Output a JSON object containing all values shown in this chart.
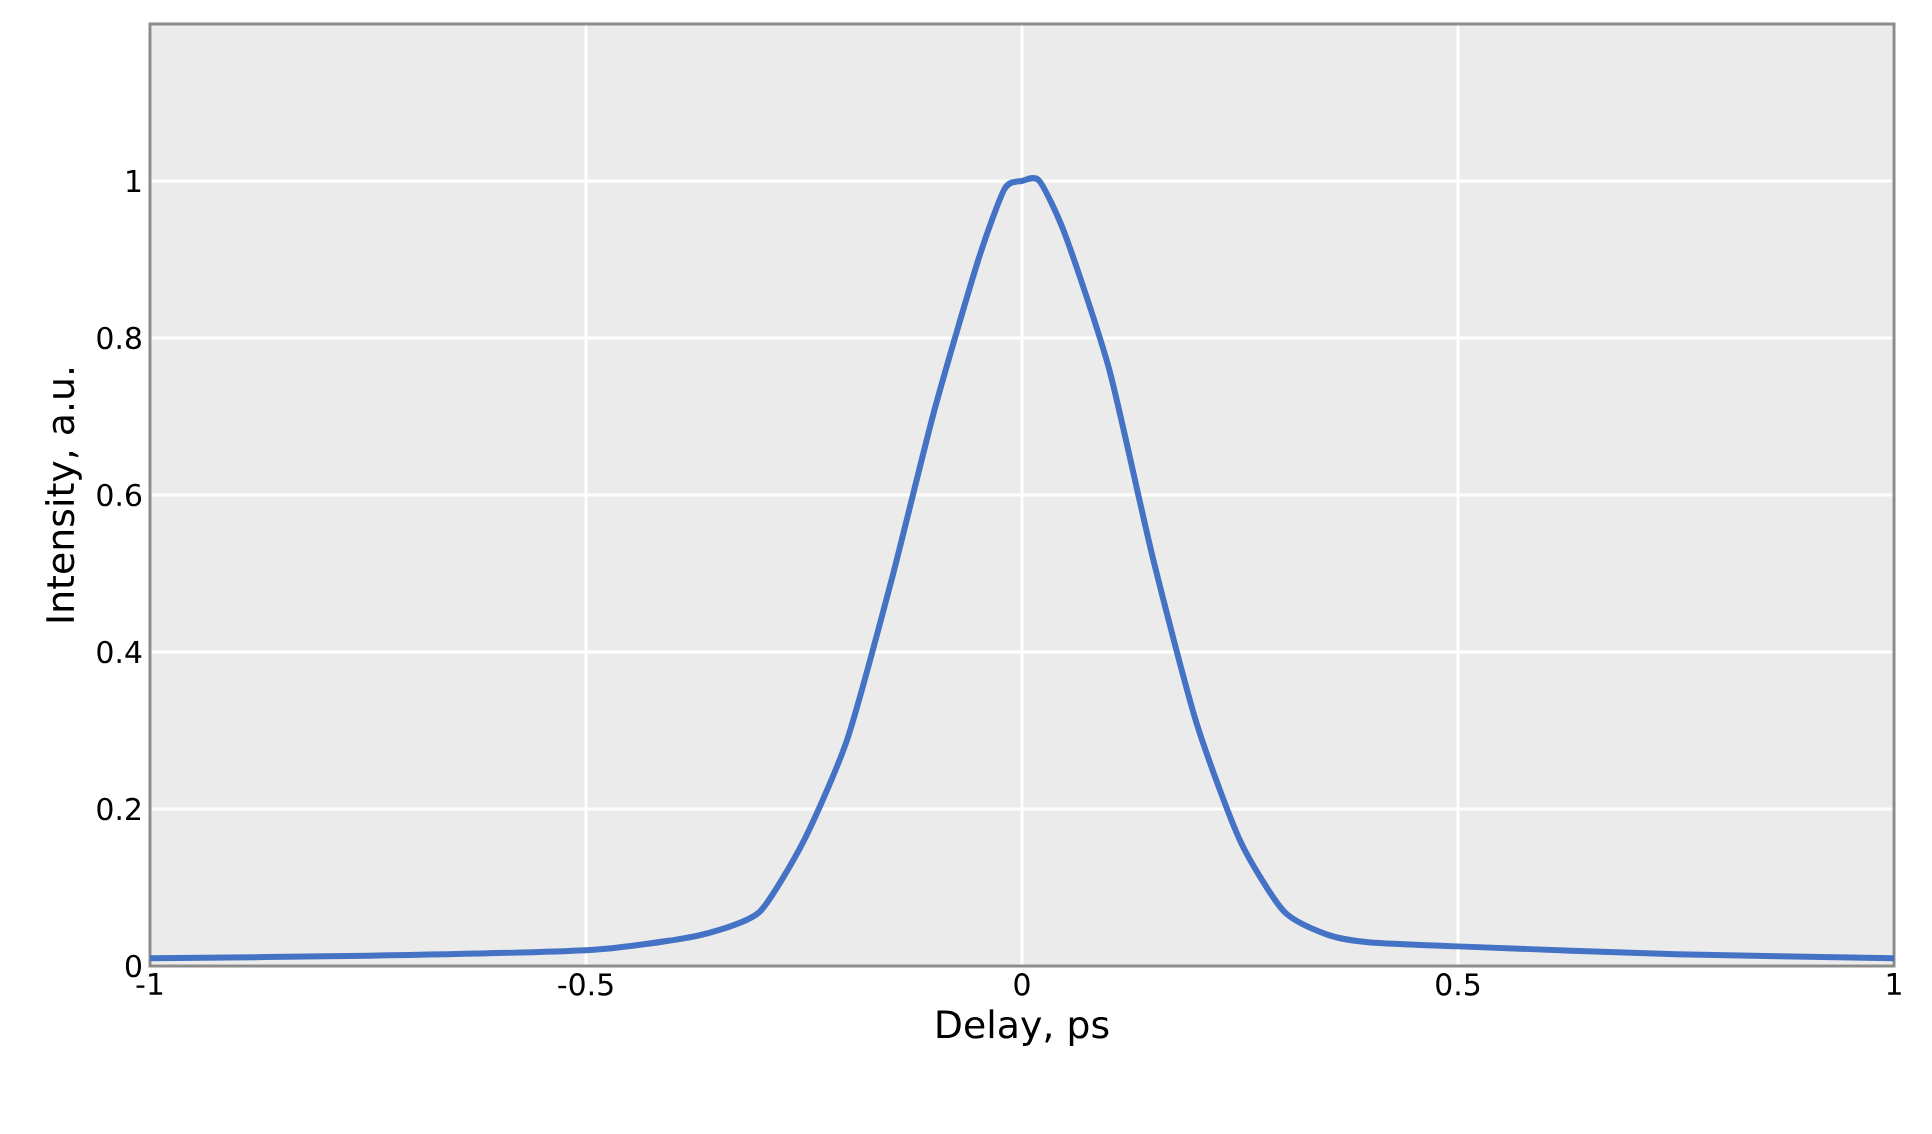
{
  "chart_data": {
    "type": "line",
    "xlabel": "Delay, ps",
    "ylabel": "Intensity, a.u.",
    "x": [
      -1,
      -0.75,
      -0.5,
      -0.4,
      -0.35,
      -0.3,
      -0.25,
      -0.2,
      -0.15,
      -0.1,
      -0.05,
      -0.02,
      0,
      0.02,
      0.05,
      0.1,
      0.15,
      0.2,
      0.25,
      0.3,
      0.35,
      0.4,
      0.5,
      0.75,
      1
    ],
    "series": [
      {
        "color": "#4472c4",
        "values": [
          0.01,
          0.013,
          0.02,
          0.033,
          0.045,
          0.07,
          0.16,
          0.29,
          0.49,
          0.71,
          0.9,
          0.99,
          1.0,
          1.0,
          0.93,
          0.76,
          0.52,
          0.31,
          0.16,
          0.07,
          0.04,
          0.03,
          0.025,
          0.015,
          0.01
        ]
      }
    ],
    "xlim": [
      -1,
      1
    ],
    "ylim": [
      0,
      1.2
    ],
    "xticks": [
      -1,
      -0.5,
      0,
      0.5,
      1
    ],
    "yticks": [
      0,
      0.2,
      0.4,
      0.6,
      0.8,
      1
    ],
    "grid": true,
    "marker": "none",
    "line_style": "solid"
  }
}
